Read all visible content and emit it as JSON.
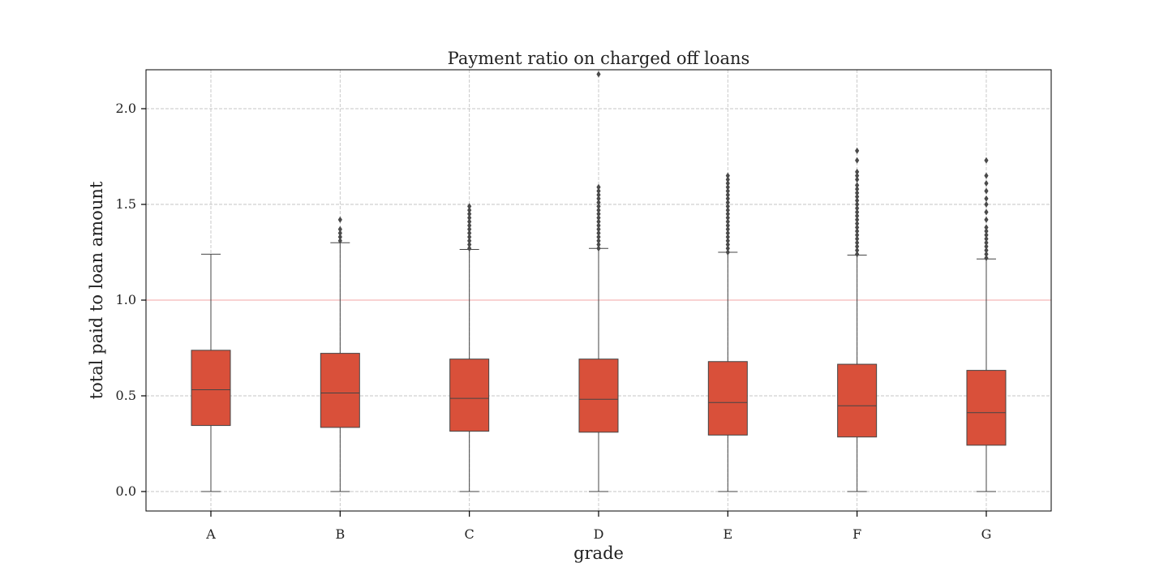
{
  "chart_data": {
    "type": "box",
    "title": "Payment ratio on charged off loans",
    "xlabel": "grade",
    "ylabel": "total paid to loan amount",
    "categories": [
      "A",
      "B",
      "C",
      "D",
      "E",
      "F",
      "G"
    ],
    "ylim": [
      -0.1,
      2.2
    ],
    "yticks": [
      0.0,
      0.5,
      1.0,
      1.5,
      2.0
    ],
    "ytick_labels": [
      "0.0",
      "0.5",
      "1.0",
      "1.5",
      "2.0"
    ],
    "grid": true,
    "reference_line": {
      "y": 1.0,
      "color": "#f3a6a6"
    },
    "box_color": "#d9503a",
    "outlier_color": "#4a4a4a",
    "boxes": [
      {
        "category": "A",
        "whisker_low": 0.0,
        "q1": 0.345,
        "median": 0.532,
        "q3": 0.738,
        "whisker_high": 1.24,
        "outliers": []
      },
      {
        "category": "B",
        "whisker_low": 0.0,
        "q1": 0.335,
        "median": 0.515,
        "q3": 0.722,
        "whisker_high": 1.3,
        "outliers": [
          1.31,
          1.33,
          1.35,
          1.37,
          1.42
        ]
      },
      {
        "category": "C",
        "whisker_low": 0.0,
        "q1": 0.315,
        "median": 0.487,
        "q3": 0.692,
        "whisker_high": 1.265,
        "outliers": [
          1.27,
          1.29,
          1.31,
          1.33,
          1.35,
          1.37,
          1.39,
          1.41,
          1.43,
          1.45,
          1.47,
          1.49
        ]
      },
      {
        "category": "D",
        "whisker_low": 0.0,
        "q1": 0.31,
        "median": 0.482,
        "q3": 0.692,
        "whisker_high": 1.27,
        "outliers": [
          1.27,
          1.29,
          1.31,
          1.33,
          1.35,
          1.37,
          1.39,
          1.41,
          1.43,
          1.45,
          1.47,
          1.49,
          1.51,
          1.53,
          1.55,
          1.57,
          1.59,
          2.18
        ]
      },
      {
        "category": "E",
        "whisker_low": 0.0,
        "q1": 0.295,
        "median": 0.465,
        "q3": 0.679,
        "whisker_high": 1.25,
        "outliers": [
          1.25,
          1.27,
          1.29,
          1.31,
          1.33,
          1.35,
          1.37,
          1.39,
          1.41,
          1.43,
          1.45,
          1.47,
          1.49,
          1.51,
          1.53,
          1.55,
          1.57,
          1.59,
          1.61,
          1.63,
          1.65
        ]
      },
      {
        "category": "F",
        "whisker_low": 0.0,
        "q1": 0.285,
        "median": 0.448,
        "q3": 0.665,
        "whisker_high": 1.235,
        "outliers": [
          1.24,
          1.26,
          1.28,
          1.3,
          1.32,
          1.34,
          1.36,
          1.38,
          1.4,
          1.42,
          1.44,
          1.46,
          1.48,
          1.5,
          1.52,
          1.54,
          1.56,
          1.58,
          1.6,
          1.63,
          1.65,
          1.67,
          1.73,
          1.78
        ]
      },
      {
        "category": "G",
        "whisker_low": 0.0,
        "q1": 0.242,
        "median": 0.412,
        "q3": 0.633,
        "whisker_high": 1.215,
        "outliers": [
          1.22,
          1.24,
          1.26,
          1.28,
          1.3,
          1.32,
          1.34,
          1.36,
          1.38,
          1.42,
          1.46,
          1.5,
          1.53,
          1.57,
          1.61,
          1.65,
          1.73
        ]
      }
    ]
  }
}
